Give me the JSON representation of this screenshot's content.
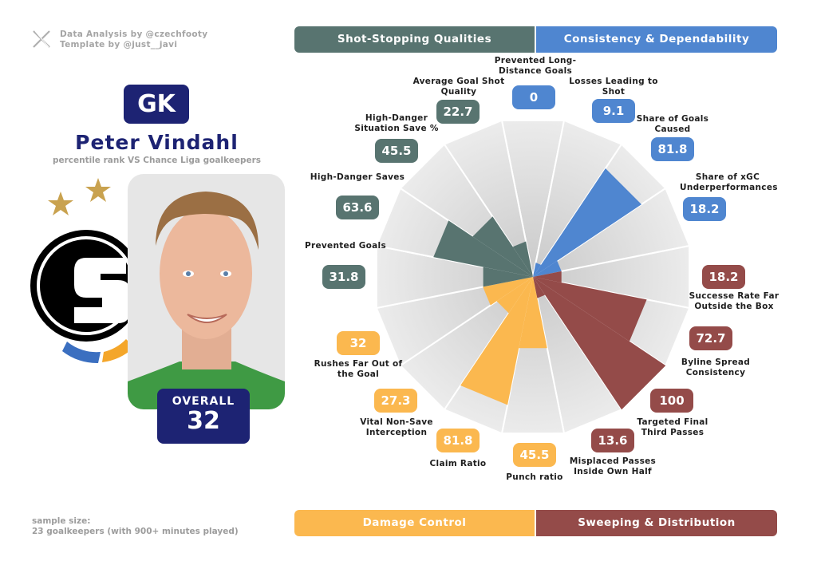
{
  "credits": {
    "line1": "Data Analysis by @czechfooty",
    "line2": "Template by @just__javi"
  },
  "player": {
    "position": "GK",
    "name": "Peter Vindahl",
    "subtitle": "percentile rank VS Chance Liga goalkeepers",
    "overall_label": "OVERALL",
    "overall_value": "32"
  },
  "categories": {
    "shot_stopping": "Shot-Stopping Qualities",
    "consistency": "Consistency & Dependability",
    "damage": "Damage Control",
    "sweeping": "Sweeping & Distribution"
  },
  "colors": {
    "shot_stopping": "#587470",
    "consistency": "#4f86d0",
    "damage": "#fbb84f",
    "sweeping": "#944b49",
    "navy": "#1d2373"
  },
  "sample": {
    "line1": "sample size:",
    "line2": "23 goalkeepers (with 900+ minutes played)"
  },
  "chart_data": {
    "type": "pie",
    "subtype": "radial-percentile",
    "range": [
      0,
      100
    ],
    "metrics": [
      {
        "label": "Prevented Long-Distance Goals",
        "value": 0,
        "display": "0",
        "group": "consistency"
      },
      {
        "label": "Losses Leading to Shot",
        "value": 9.1,
        "display": "9.1",
        "group": "consistency"
      },
      {
        "label": "Share of Goals Caused",
        "value": 81.8,
        "display": "81.8",
        "group": "consistency"
      },
      {
        "label": "Share of xGC Underperformances",
        "value": 18.2,
        "display": "18.2",
        "group": "consistency"
      },
      {
        "label": "Successe Rate Far Outside the Box",
        "value": 18.2,
        "display": "18.2",
        "group": "sweeping"
      },
      {
        "label": "Byline Spread Consistency",
        "value": 72.7,
        "display": "72.7",
        "group": "sweeping"
      },
      {
        "label": "Targeted Final Third Passes",
        "value": 100,
        "display": "100",
        "group": "sweeping"
      },
      {
        "label": "Misplaced Passes Inside Own Half",
        "value": 13.6,
        "display": "13.6",
        "group": "sweeping"
      },
      {
        "label": "Punch ratio",
        "value": 45.5,
        "display": "45.5",
        "group": "damage"
      },
      {
        "label": "Claim Ratio",
        "value": 81.8,
        "display": "81.8",
        "group": "damage"
      },
      {
        "label": "Vital Non-Save Interception",
        "value": 27.3,
        "display": "27.3",
        "group": "damage"
      },
      {
        "label": "Rushes Far Out of the Goal",
        "value": 32,
        "display": "32",
        "group": "damage"
      },
      {
        "label": "Prevented Goals",
        "value": 31.8,
        "display": "31.8",
        "group": "shot_stopping"
      },
      {
        "label": "High-Danger Saves",
        "value": 63.6,
        "display": "63.6",
        "group": "shot_stopping"
      },
      {
        "label": "High-Danger Situation Save %",
        "value": 45.5,
        "display": "45.5",
        "group": "shot_stopping"
      },
      {
        "label": "Average Goal Shot Quality",
        "value": 22.7,
        "display": "22.7",
        "group": "shot_stopping"
      }
    ]
  }
}
